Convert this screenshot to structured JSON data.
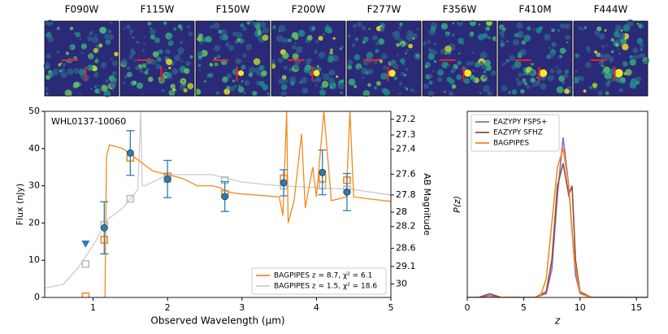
{
  "chart_data": [
    {
      "type": "image",
      "panels": [
        "F090W",
        "F115W",
        "F150W",
        "F200W",
        "F277W",
        "F356W",
        "F410M",
        "F444W"
      ]
    },
    {
      "type": "line",
      "annotation": "WHL0137-10060",
      "xlabel": "Observed Wavelength (μm)",
      "ylabel": "Flux (nJy)",
      "y2label": "AB Magnitude",
      "xlim": [
        0.35,
        5
      ],
      "xticks": [
        1,
        2,
        3,
        4,
        5
      ],
      "ylim": [
        0,
        50
      ],
      "yticks": [
        0,
        10,
        20,
        30,
        40,
        50
      ],
      "y2scale": "ab_magnitude",
      "y2ticks": [
        27.2,
        27.3,
        27.4,
        27.6,
        27.8,
        28.0,
        28.2,
        28.6,
        29.1,
        30.0
      ],
      "legend": "lower right",
      "series": [
        {
          "name": "BAGPIPES z = 8.7, χ² = 6.1",
          "color": "#f28a1c",
          "x": [
            1.12,
            1.16,
            1.18,
            1.22,
            1.4,
            1.6,
            1.8,
            2.0,
            2.2,
            2.4,
            2.6,
            2.7,
            2.8,
            2.9,
            3.0,
            3.2,
            3.5,
            3.55,
            3.6,
            3.62,
            3.7,
            3.8,
            3.85,
            3.95,
            4.0,
            4.1,
            4.2,
            4.4,
            4.45,
            4.5,
            4.7,
            5.0
          ],
          "values": [
            0,
            0,
            38,
            41,
            40,
            37,
            34,
            33,
            32,
            30,
            30,
            29.5,
            28.5,
            28,
            27.8,
            27.5,
            27,
            22,
            50,
            20,
            26,
            44,
            24,
            35,
            27,
            50,
            26,
            27,
            50,
            27,
            26.5,
            25.8
          ]
        },
        {
          "name": "BAGPIPES z = 1.5, χ² = 18.6",
          "color": "#cccccc",
          "x": [
            0.35,
            0.6,
            0.8,
            1.0,
            1.2,
            1.4,
            1.6,
            1.64,
            1.66,
            1.7,
            2.0,
            2.3,
            2.6,
            3.0,
            3.5,
            4.0,
            4.5,
            5.0
          ],
          "values": [
            2.5,
            3.5,
            8,
            14,
            21,
            24,
            29,
            50,
            30,
            30,
            33,
            33,
            33,
            31,
            30,
            29.5,
            29,
            27.5
          ]
        }
      ],
      "model_photometry": [
        {
          "color": "#f28a1c",
          "x": [
            0.9,
            1.15,
            1.5,
            2.0,
            2.77,
            3.56,
            4.08,
            4.41
          ],
          "values": [
            0.3,
            15.5,
            37.5,
            32.5,
            27.8,
            32,
            32,
            31.5
          ]
        },
        {
          "color": "#bbbbbb",
          "x": [
            0.9,
            1.15,
            1.5,
            2.0,
            2.77,
            3.56,
            4.08,
            4.41
          ],
          "values": [
            9,
            19.5,
            26.5,
            31.8,
            31.5,
            30,
            30,
            29
          ]
        }
      ],
      "observations": {
        "color": "#2f7cb0",
        "x": [
          1.15,
          1.5,
          2.0,
          2.77,
          3.56,
          4.08,
          4.41
        ],
        "values": [
          18.7,
          38.8,
          31.8,
          27.1,
          30.8,
          33.6,
          28.3
        ],
        "errors": [
          7,
          6,
          5,
          4,
          3.5,
          6,
          5
        ]
      },
      "upper_limits": {
        "color": "#2f7cb0",
        "x": [
          0.9
        ],
        "values": [
          14.4
        ]
      }
    },
    {
      "type": "line",
      "xlabel": "z",
      "ylabel": "P(z)",
      "xlim": [
        0,
        16
      ],
      "xticks": [
        0,
        5,
        10,
        15
      ],
      "ylim": [
        0,
        1
      ],
      "legend": "upper left",
      "series": [
        {
          "name": "EAZYPY FSPS+",
          "color": "#9467bd",
          "x": [
            0,
            1,
            2,
            3,
            5,
            6,
            7,
            7.5,
            8,
            8.5,
            9,
            9.3,
            9.6,
            10,
            11,
            16
          ],
          "values": [
            0,
            0,
            0.01,
            0,
            0,
            0,
            0.02,
            0.15,
            0.55,
            0.86,
            0.6,
            0.35,
            0.12,
            0.02,
            0,
            0
          ]
        },
        {
          "name": "EAZYPY SFHZ",
          "color": "#8c4b3c",
          "x": [
            0,
            1,
            2,
            3,
            5,
            6,
            7,
            7.5,
            8,
            8.5,
            9,
            9.3,
            9.6,
            10,
            11,
            16
          ],
          "values": [
            0,
            0,
            0.02,
            0,
            0,
            0,
            0.03,
            0.2,
            0.6,
            0.72,
            0.55,
            0.6,
            0.2,
            0.03,
            0,
            0
          ]
        },
        {
          "name": "BAGPIPES",
          "color": "#f28a1c",
          "x": [
            0,
            1,
            2,
            3,
            5,
            6,
            6.5,
            7,
            7.5,
            8,
            8.5,
            9,
            9.5,
            10,
            11,
            16
          ],
          "values": [
            0,
            0,
            0,
            0,
            0,
            0,
            0.01,
            0.1,
            0.4,
            0.7,
            0.8,
            0.6,
            0.2,
            0.02,
            0,
            0
          ]
        }
      ]
    }
  ]
}
